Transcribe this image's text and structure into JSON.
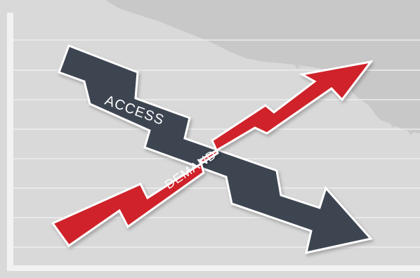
{
  "arrows": {
    "access_label": "ACCESS",
    "demand_label": "DEMAND",
    "access_color": "#3d4451",
    "demand_color": "#cf2229"
  },
  "background": {
    "base_color": "#d9d9d9",
    "map_color": "#c9c9c9",
    "grid_color": "#efefef"
  }
}
